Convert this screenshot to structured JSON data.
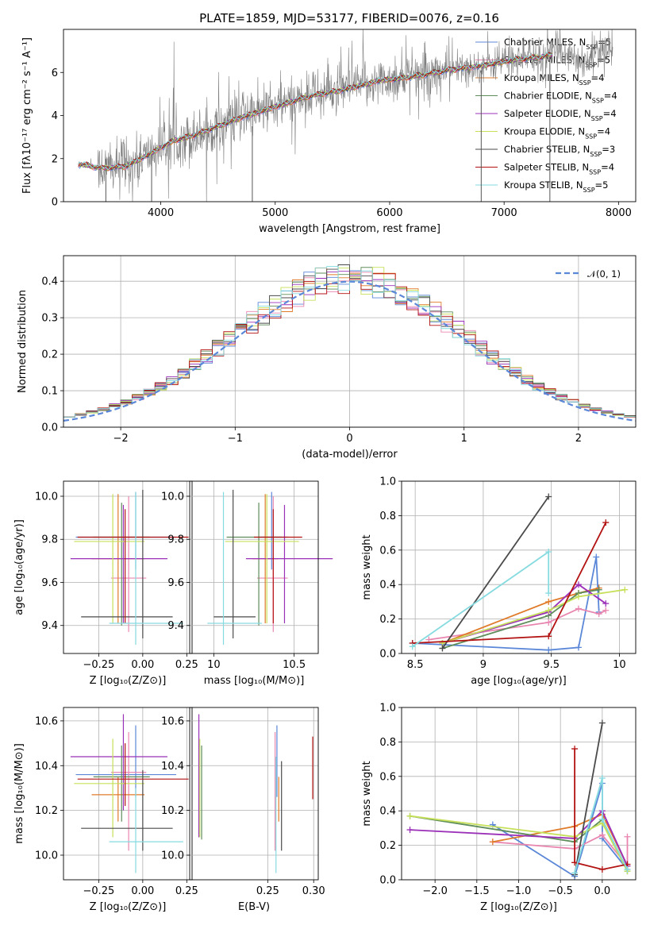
{
  "figure": {
    "title": "PLATE=1859, MJD=53177, FIBERID=0076, z=0.16"
  },
  "series_legend": [
    {
      "name": "Chabrier MILES, N",
      "sub": "SSP",
      "tail": "=5",
      "color": "#5b87d8"
    },
    {
      "name": "Salpeter MILES, N",
      "sub": "SSP",
      "tail": "=5",
      "color": "#e986b0"
    },
    {
      "name": "Kroupa MILES, N",
      "sub": "SSP",
      "tail": "=4",
      "color": "#e07b2a"
    },
    {
      "name": "Chabrier ELODIE, N",
      "sub": "SSP",
      "tail": "=4",
      "color": "#5e8c5a"
    },
    {
      "name": "Salpeter ELODIE, N",
      "sub": "SSP",
      "tail": "=4",
      "color": "#9b30b8"
    },
    {
      "name": "Kroupa ELODIE, N",
      "sub": "SSP",
      "tail": "=4",
      "color": "#c6e05a"
    },
    {
      "name": "Chabrier STELIB, N",
      "sub": "SSP",
      "tail": "=3",
      "color": "#4a4a4a"
    },
    {
      "name": "Salpeter STELIB, N",
      "sub": "SSP",
      "tail": "=4",
      "color": "#b31212"
    },
    {
      "name": "Kroupa STELIB, N",
      "sub": "SSP",
      "tail": "=5",
      "color": "#86dbe0"
    }
  ],
  "chart_data": [
    {
      "id": "spectrum",
      "type": "line",
      "xlabel": "wavelength [Angstrom, rest frame]",
      "ylabel": "Flux [fλ10⁻¹⁷ erg cm⁻² s⁻¹ A⁻¹]",
      "xlim": [
        3150,
        8150
      ],
      "ylim": [
        0,
        8
      ],
      "xticks": [
        4000,
        5000,
        6000,
        7000,
        8000
      ],
      "yticks": [
        0,
        2,
        4,
        6
      ],
      "data_color": "#808080",
      "model_continuum": {
        "x": [
          3280,
          3500,
          3700,
          3900,
          4100,
          4300,
          4500,
          4700,
          5000,
          5300,
          5600,
          5900,
          6200,
          6500,
          6800,
          7100,
          7300,
          7400
        ],
        "y": [
          1.75,
          1.55,
          1.65,
          2.2,
          2.8,
          3.1,
          3.5,
          3.9,
          4.4,
          4.9,
          5.2,
          5.6,
          5.8,
          6.1,
          6.3,
          6.6,
          6.7,
          6.8
        ]
      },
      "data_extent": {
        "x_start": 3280,
        "x_end": 7950
      },
      "spikes": [
        {
          "x": 4800,
          "y_low": 0,
          "y_high": 3.5
        },
        {
          "x": 3520,
          "y_low": 0,
          "y_high": 2.0
        },
        {
          "x": 3920,
          "y_low": 0,
          "y_high": 2.3
        },
        {
          "x": 6800,
          "y_low": 0,
          "y_high": 6.1
        },
        {
          "x": 7400,
          "y_low": 0,
          "y_high": 6.8
        }
      ]
    },
    {
      "id": "residuals",
      "type": "histogram",
      "xlabel": "(data-model)/error",
      "ylabel": "Normed distribution",
      "xlim": [
        -2.5,
        2.5
      ],
      "ylim": [
        0,
        0.47
      ],
      "xticks": [
        -2,
        -1,
        0,
        1,
        2
      ],
      "yticks": [
        0.0,
        0.1,
        0.2,
        0.3,
        0.4
      ],
      "grid": true,
      "reference": {
        "label": "𝒩(0, 1)",
        "mean": 0,
        "sigma": 1,
        "color": "#5b87d8"
      },
      "bin_width": 0.1,
      "bins_from": -2.5
    },
    {
      "id": "age-vs-Z",
      "type": "errorbar",
      "xlabel": "Z [log₁₀(Z/Z⊙)]",
      "ylabel": "age  [log₁₀(age/yr)]",
      "xlim": [
        -0.45,
        0.28
      ],
      "ylim": [
        9.27,
        10.07
      ],
      "xticks": [
        -0.25,
        0.0,
        0.25
      ],
      "xticklabels": [
        "−0.25",
        "0.00",
        "0.25"
      ],
      "yticks": [
        9.4,
        9.6,
        9.8,
        10.0
      ],
      "grid": true,
      "points": [
        {
          "series": 0,
          "x": -0.04,
          "xerr": [
            0.34,
            0.23
          ],
          "y": 9.81,
          "yerr": [
            0.15,
            0.21
          ]
        },
        {
          "series": 1,
          "x": -0.08,
          "xerr": [
            0.1,
            0.1
          ],
          "y": 9.62,
          "yerr": [
            0.25,
            0.38
          ]
        },
        {
          "series": 2,
          "x": -0.14,
          "xerr": [
            0.15,
            0.15
          ],
          "y": 9.71,
          "yerr": [
            0.3,
            0.3
          ]
        },
        {
          "series": 3,
          "x": -0.12,
          "xerr": [
            0.16,
            0.16
          ],
          "y": 9.81,
          "yerr": [
            0.41,
            0.16
          ]
        },
        {
          "series": 4,
          "x": -0.11,
          "xerr": [
            0.3,
            0.25
          ],
          "y": 9.71,
          "yerr": [
            0.3,
            0.25
          ]
        },
        {
          "series": 5,
          "x": -0.17,
          "xerr": [
            0.22,
            0.18
          ],
          "y": 9.79,
          "yerr": [
            0.38,
            0.22
          ]
        },
        {
          "series": 6,
          "x": 0.0,
          "xerr": [
            0.35,
            0.17
          ],
          "y": 9.44,
          "yerr": [
            0.1,
            0.59
          ]
        },
        {
          "series": 7,
          "x": -0.1,
          "xerr": [
            0.27,
            0.36
          ],
          "y": 9.81,
          "yerr": [
            0.4,
            0.13
          ]
        },
        {
          "series": 8,
          "x": -0.04,
          "xerr": [
            0.15,
            0.27
          ],
          "y": 9.41,
          "yerr": [
            0.1,
            0.61
          ]
        }
      ]
    },
    {
      "id": "age-vs-mass",
      "type": "errorbar",
      "xlabel": "mass [log₁₀(M/M⊙)]",
      "ylabel": "",
      "xlim": [
        9.85,
        10.65
      ],
      "ylim": [
        9.27,
        10.07
      ],
      "xticks": [
        10.0,
        10.5
      ],
      "xticklabels": [
        "10",
        "10.5"
      ],
      "yticks": [
        9.4,
        9.6,
        9.8,
        10.0
      ],
      "grid": true,
      "points": [
        {
          "series": 0,
          "x": 10.36,
          "xerr": [
            0.08,
            0.1
          ],
          "y": 9.81,
          "yerr": [
            0.15,
            0.21
          ]
        },
        {
          "series": 1,
          "x": 10.37,
          "xerr": [
            0.1,
            0.09
          ],
          "y": 9.62,
          "yerr": [
            0.25,
            0.38
          ]
        },
        {
          "series": 2,
          "x": 10.32,
          "xerr": [
            0.08,
            0.08
          ],
          "y": 9.71,
          "yerr": [
            0.3,
            0.3
          ]
        },
        {
          "series": 3,
          "x": 10.28,
          "xerr": [
            0.2,
            0.14
          ],
          "y": 9.81,
          "yerr": [
            0.41,
            0.16
          ]
        },
        {
          "series": 4,
          "x": 10.44,
          "xerr": [
            0.24,
            0.3
          ],
          "y": 9.71,
          "yerr": [
            0.3,
            0.25
          ]
        },
        {
          "series": 5,
          "x": 10.33,
          "xerr": [
            0.26,
            0.2
          ],
          "y": 9.79,
          "yerr": [
            0.38,
            0.22
          ]
        },
        {
          "series": 6,
          "x": 10.12,
          "xerr": [
            0.12,
            0.14
          ],
          "y": 9.44,
          "yerr": [
            0.1,
            0.59
          ]
        },
        {
          "series": 7,
          "x": 10.37,
          "xerr": [
            0.12,
            0.18
          ],
          "y": 9.81,
          "yerr": [
            0.4,
            0.13
          ]
        },
        {
          "series": 8,
          "x": 10.06,
          "xerr": [
            0.1,
            0.24
          ],
          "y": 9.41,
          "yerr": [
            0.1,
            0.61
          ]
        }
      ]
    },
    {
      "id": "weight-vs-age",
      "type": "line",
      "xlabel": "age  [log₁₀(age/yr)]",
      "ylabel": "mass weight",
      "xlim": [
        8.4,
        10.12
      ],
      "ylim": [
        0,
        1
      ],
      "xticks": [
        8.5,
        9.0,
        9.5,
        10.0
      ],
      "yticks": [
        0.0,
        0.2,
        0.4,
        0.6,
        0.8,
        1.0
      ],
      "grid": true,
      "series": [
        {
          "series": 0,
          "x": [
            8.48,
            9.48,
            9.7,
            9.83,
            9.85
          ],
          "y": [
            0.06,
            0.02,
            0.035,
            0.56,
            0.24
          ]
        },
        {
          "series": 1,
          "x": [
            8.6,
            9.48,
            9.7,
            9.85,
            9.9
          ],
          "y": [
            0.08,
            0.18,
            0.26,
            0.23,
            0.25
          ]
        },
        {
          "series": 2,
          "x": [
            8.7,
            9.48,
            9.7,
            9.85
          ],
          "y": [
            0.06,
            0.3,
            0.35,
            0.38
          ]
        },
        {
          "series": 3,
          "x": [
            8.7,
            9.48,
            9.7,
            9.85
          ],
          "y": [
            0.03,
            0.22,
            0.35,
            0.37
          ]
        },
        {
          "series": 4,
          "x": [
            8.7,
            9.48,
            9.7,
            9.9
          ],
          "y": [
            0.06,
            0.24,
            0.4,
            0.29
          ]
        },
        {
          "series": 5,
          "x": [
            8.7,
            9.48,
            9.7,
            10.04
          ],
          "y": [
            0.06,
            0.25,
            0.33,
            0.37
          ]
        },
        {
          "series": 6,
          "x": [
            8.7,
            9.48
          ],
          "y": [
            0.03,
            0.91
          ]
        },
        {
          "series": 7,
          "x": [
            8.48,
            9.48,
            9.9
          ],
          "y": [
            0.06,
            0.1,
            0.76
          ]
        },
        {
          "series": 8,
          "x": [
            8.48,
            9.48,
            9.48
          ],
          "y": [
            0.04,
            0.59,
            0.35
          ]
        }
      ]
    },
    {
      "id": "mass-vs-Z",
      "type": "errorbar",
      "xlabel": "Z [log₁₀(Z/Z⊙)]",
      "ylabel": "mass [log₁₀(M/M⊙)]",
      "xlim": [
        -0.45,
        0.28
      ],
      "ylim": [
        9.89,
        10.66
      ],
      "xticks": [
        -0.25,
        0.0,
        0.25
      ],
      "xticklabels": [
        "−0.25",
        "0.00",
        "0.25"
      ],
      "yticks": [
        10.0,
        10.2,
        10.4,
        10.6
      ],
      "grid": true,
      "points": [
        {
          "series": 0,
          "x": -0.04,
          "xerr": [
            0.34,
            0.23
          ],
          "y": 10.36,
          "yerr": [
            0.1,
            0.22
          ]
        },
        {
          "series": 1,
          "x": -0.08,
          "xerr": [
            0.1,
            0.1
          ],
          "y": 10.37,
          "yerr": [
            0.35,
            0.18
          ]
        },
        {
          "series": 2,
          "x": -0.14,
          "xerr": [
            0.15,
            0.15
          ],
          "y": 10.27,
          "yerr": [
            0.12,
            0.08
          ]
        },
        {
          "series": 3,
          "x": -0.12,
          "xerr": [
            0.16,
            0.16
          ],
          "y": 10.35,
          "yerr": [
            0.2,
            0.14
          ]
        },
        {
          "series": 4,
          "x": -0.11,
          "xerr": [
            0.3,
            0.25
          ],
          "y": 10.44,
          "yerr": [
            0.24,
            0.19
          ]
        },
        {
          "series": 5,
          "x": -0.17,
          "xerr": [
            0.22,
            0.18
          ],
          "y": 10.32,
          "yerr": [
            0.24,
            0.2
          ]
        },
        {
          "series": 6,
          "x": 0.0,
          "xerr": [
            0.35,
            0.17
          ],
          "y": 10.12,
          "yerr": [
            0.1,
            0.26
          ]
        },
        {
          "series": 7,
          "x": -0.1,
          "xerr": [
            0.27,
            0.36
          ],
          "y": 10.34,
          "yerr": [
            0.12,
            0.16
          ]
        },
        {
          "series": 8,
          "x": -0.04,
          "xerr": [
            0.15,
            0.27
          ],
          "y": 10.06,
          "yerr": [
            0.14,
            0.24
          ]
        }
      ]
    },
    {
      "id": "mass-vs-ebv",
      "type": "errorbar",
      "xlabel": "E(B-V)",
      "ylabel": "",
      "xlim": [
        0.165,
        0.305
      ],
      "ylim": [
        9.89,
        10.66
      ],
      "xticks": [
        0.25,
        0.3
      ],
      "xticklabels": [
        "0.25",
        "0.30"
      ],
      "yticks": [
        10.0,
        10.2,
        10.4,
        10.6
      ],
      "grid": true,
      "points": [
        {
          "series": 0,
          "x": 0.26,
          "y": 10.36,
          "yerr": [
            0.1,
            0.22
          ]
        },
        {
          "series": 1,
          "x": 0.258,
          "y": 10.37,
          "yerr": [
            0.35,
            0.18
          ]
        },
        {
          "series": 2,
          "x": 0.262,
          "y": 10.27,
          "yerr": [
            0.12,
            0.08
          ]
        },
        {
          "series": 3,
          "x": 0.178,
          "y": 10.35,
          "yerr": [
            0.28,
            0.14
          ]
        },
        {
          "series": 4,
          "x": 0.175,
          "y": 10.44,
          "yerr": [
            0.36,
            0.19
          ]
        },
        {
          "series": 5,
          "x": 0.176,
          "y": 10.32,
          "yerr": [
            0.24,
            0.2
          ]
        },
        {
          "series": 6,
          "x": 0.265,
          "y": 10.12,
          "yerr": [
            0.1,
            0.3
          ]
        },
        {
          "series": 7,
          "x": 0.299,
          "y": 10.39,
          "yerr": [
            0.14,
            0.14
          ]
        },
        {
          "series": 8,
          "x": 0.259,
          "y": 10.06,
          "yerr": [
            0.14,
            0.38
          ]
        }
      ]
    },
    {
      "id": "weight-vs-Z",
      "type": "line",
      "xlabel": "Z [log₁₀(Z/Z⊙)]",
      "ylabel": "mass weight",
      "xlim": [
        -2.4,
        0.4
      ],
      "ylim": [
        0,
        1
      ],
      "xticks": [
        -2.0,
        -1.5,
        -1.0,
        -0.5,
        0.0
      ],
      "xticklabels": [
        "−2.0",
        "−1.5",
        "−1.0",
        "−0.5",
        "0.0"
      ],
      "yticks": [
        0.0,
        0.2,
        0.4,
        0.6,
        0.8,
        1.0
      ],
      "grid": true,
      "series": [
        {
          "series": 0,
          "x": [
            -1.31,
            -0.33,
            0.0,
            0.0,
            0.3
          ],
          "y": [
            0.32,
            0.02,
            0.56,
            0.24,
            0.06
          ]
        },
        {
          "series": 1,
          "x": [
            -1.31,
            -0.33,
            0.0,
            0.3,
            0.3
          ],
          "y": [
            0.22,
            0.18,
            0.26,
            0.08,
            0.25
          ]
        },
        {
          "series": 2,
          "x": [
            -1.31,
            -0.33,
            0.0,
            0.3
          ],
          "y": [
            0.22,
            0.31,
            0.38,
            0.08
          ]
        },
        {
          "series": 3,
          "x": [
            -2.3,
            -0.33,
            0.0,
            0.3
          ],
          "y": [
            0.37,
            0.22,
            0.35,
            0.05
          ]
        },
        {
          "series": 4,
          "x": [
            -2.3,
            -0.33,
            0.0,
            0.3
          ],
          "y": [
            0.29,
            0.24,
            0.4,
            0.08
          ]
        },
        {
          "series": 5,
          "x": [
            -2.3,
            -0.33,
            0.0,
            0.3
          ],
          "y": [
            0.37,
            0.25,
            0.33,
            0.05
          ]
        },
        {
          "series": 6,
          "x": [
            -0.33,
            0.0
          ],
          "y": [
            0.03,
            0.91
          ]
        },
        {
          "series": 7,
          "x": [
            -0.33,
            -0.33,
            0.0,
            0.3
          ],
          "y": [
            0.76,
            0.1,
            0.06,
            0.09
          ]
        },
        {
          "series": 8,
          "x": [
            -0.33,
            0.0,
            0.0,
            0.3
          ],
          "y": [
            0.04,
            0.59,
            0.35,
            0.06
          ]
        }
      ]
    }
  ]
}
